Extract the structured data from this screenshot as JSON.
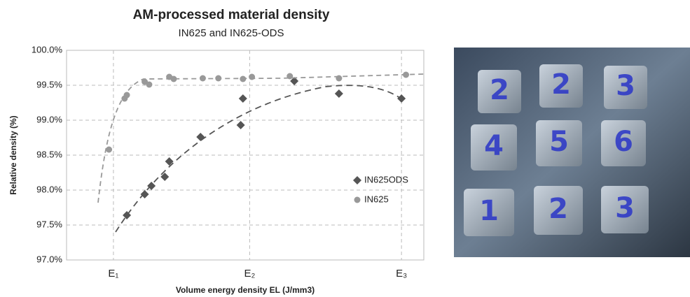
{
  "chart_data": {
    "type": "scatter",
    "title": "AM-processed material density",
    "subtitle": "IN625 and IN625-ODS",
    "x_label": "Volume energy density EL (J/mm3)",
    "y_label": "Relative density (%)",
    "xlim": [
      0,
      8
    ],
    "xticks": [
      {
        "value": 1.05,
        "label": "E₁"
      },
      {
        "value": 4.1,
        "label": "E₂"
      },
      {
        "value": 7.5,
        "label": "E₃"
      }
    ],
    "ylim": [
      97.0,
      100.0
    ],
    "yticks": [
      {
        "value": 97.0,
        "label": "97.0%"
      },
      {
        "value": 97.5,
        "label": "97.5%"
      },
      {
        "value": 98.0,
        "label": "98.0%"
      },
      {
        "value": 98.5,
        "label": "98.5%"
      },
      {
        "value": 99.0,
        "label": "99.0%"
      },
      {
        "value": 99.5,
        "label": "99.5%"
      },
      {
        "value": 100.0,
        "label": "100.0%"
      }
    ],
    "grid": true,
    "legend": "right",
    "series": [
      {
        "name": "IN625ODS",
        "color": "#555555",
        "marker": "diamond",
        "x": [
          1.35,
          1.75,
          1.9,
          2.2,
          2.3,
          3.0,
          3.9,
          3.95,
          5.1,
          6.1,
          7.5
        ],
        "values": [
          97.64,
          97.94,
          98.06,
          98.19,
          98.41,
          98.76,
          98.93,
          99.31,
          99.56,
          99.38,
          99.31
        ]
      },
      {
        "name": "IN625",
        "color": "#999999",
        "marker": "circle",
        "x": [
          0.95,
          1.3,
          1.35,
          1.75,
          1.85,
          2.3,
          2.4,
          3.05,
          3.4,
          3.95,
          4.15,
          5.0,
          6.1,
          7.6
        ],
        "values": [
          98.58,
          99.31,
          99.36,
          99.55,
          99.51,
          99.62,
          99.59,
          99.6,
          99.6,
          99.59,
          99.62,
          99.63,
          99.6,
          99.65
        ]
      }
    ]
  },
  "photo": {
    "labels": [
      "2",
      "2",
      "3",
      "4",
      "5",
      "6",
      "1",
      "2",
      "3"
    ]
  }
}
